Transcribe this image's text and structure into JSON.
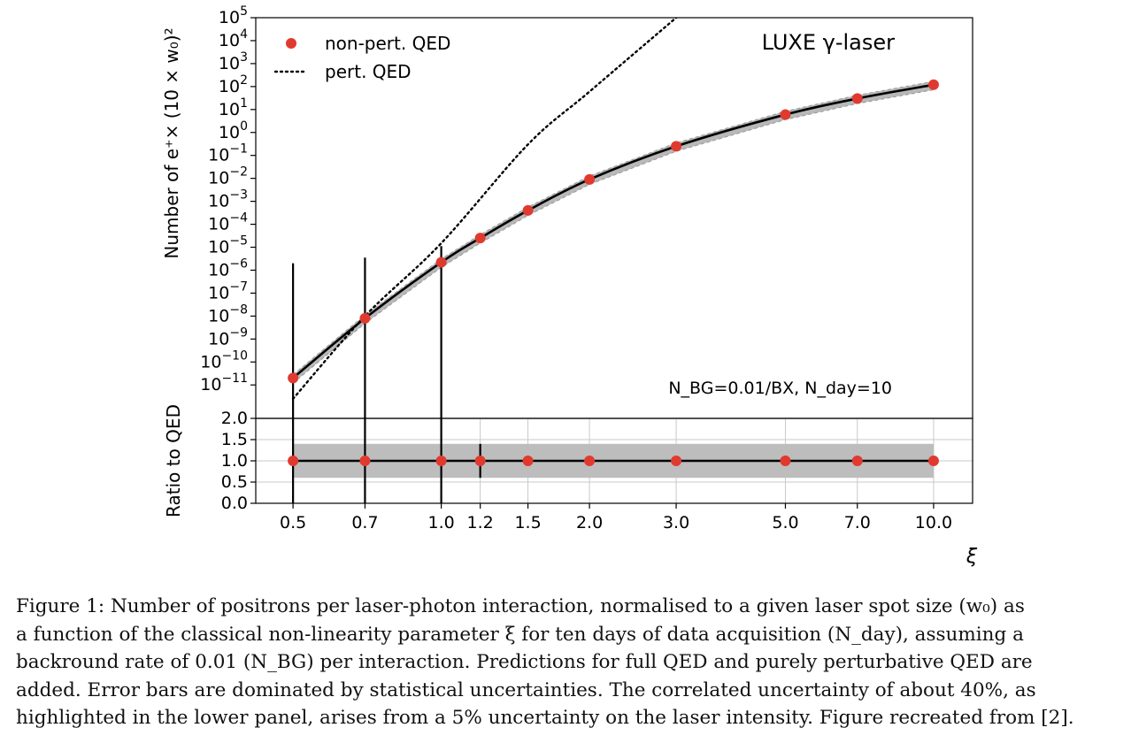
{
  "chart_data": {
    "type": "scatter",
    "xlabel": "ξ",
    "x_scale": "log",
    "x_ticks": [
      0.5,
      0.7,
      1.0,
      1.2,
      1.5,
      2.0,
      3.0,
      5.0,
      7.0,
      10.0
    ],
    "x_tick_labels": [
      "0.5",
      "0.7",
      "1.0",
      "1.2",
      "1.5",
      "2.0",
      "3.0",
      "5.0",
      "7.0",
      "10.0"
    ],
    "xlim": [
      0.42,
      12.0
    ],
    "upper_panel": {
      "ylabel": "Number of e⁺× (10 × w₀)²",
      "y_scale": "log",
      "ylim": [
        1e-12,
        100000.0
      ],
      "y_tick_exponents": [
        5,
        4,
        3,
        2,
        1,
        0,
        -1,
        -2,
        -3,
        -4,
        -5,
        -6,
        -7,
        -8,
        -9,
        -10,
        -11
      ],
      "annotation_title": "LUXE γ-laser",
      "annotation_bg": "N_BG=0.01/BX, N_day=10",
      "legend_position": "upper-left",
      "series": [
        {
          "name": "non-pert. QED",
          "style": "markers",
          "color": "#e03a2f",
          "x": [
            0.5,
            0.7,
            1.0,
            1.2,
            1.5,
            2.0,
            3.0,
            5.0,
            7.0,
            10.0
          ],
          "y": [
            2e-11,
            8e-09,
            2.2e-06,
            2.5e-05,
            0.0004,
            0.009,
            0.25,
            6,
            30,
            120
          ],
          "y_err": [
            [
              2e-11,
              2e-06
            ],
            [
              8e-09,
              3.5e-06
            ],
            [
              2.2e-06,
              9e-06
            ],
            [
              0,
              0
            ],
            [
              0,
              0
            ],
            [
              0,
              0
            ],
            [
              0,
              0
            ],
            [
              0,
              0
            ],
            [
              0,
              0
            ],
            [
              0,
              0
            ]
          ]
        },
        {
          "name": "non-pert. QED (curve)",
          "style": "solid-line-with-band",
          "color": "#000000",
          "band_color": "#b8b8b8",
          "x": [
            0.5,
            0.7,
            1.0,
            1.2,
            1.5,
            2.0,
            3.0,
            5.0,
            7.0,
            10.0
          ],
          "y": [
            2e-11,
            8e-09,
            2.2e-06,
            2.5e-05,
            0.0004,
            0.009,
            0.25,
            6,
            30,
            120
          ]
        },
        {
          "name": "pert. QED",
          "style": "dotted-line",
          "color": "#000000",
          "x": [
            0.5,
            0.7,
            1.0,
            1.5,
            2.0,
            3.0
          ],
          "y": [
            2.5e-12,
            1e-08,
            1.5e-05,
            0.3,
            60,
            100000.0
          ]
        }
      ]
    },
    "lower_panel": {
      "ylabel": "Ratio to QED",
      "ylim": [
        0.0,
        2.0
      ],
      "y_ticks": [
        "2.0",
        "1.5",
        "1.0",
        "0.5",
        "0.0"
      ],
      "grid": true,
      "band": [
        0.6,
        1.4
      ],
      "band_color": "#bdbdbd",
      "x": [
        0.5,
        0.7,
        1.0,
        1.2,
        1.5,
        2.0,
        3.0,
        5.0,
        7.0,
        10.0
      ],
      "y": [
        1.0,
        1.0,
        1.0,
        1.0,
        1.0,
        1.0,
        1.0,
        1.0,
        1.0,
        1.0
      ],
      "y_err": [
        [
          1.0,
          1.0
        ],
        [
          1.0,
          1.0
        ],
        [
          1.0,
          1.0
        ],
        [
          0.4,
          0.4
        ],
        [
          0,
          0
        ],
        [
          0,
          0
        ],
        [
          0,
          0
        ],
        [
          0,
          0
        ],
        [
          0,
          0
        ],
        [
          0,
          0
        ]
      ]
    }
  },
  "caption": {
    "lines": [
      "Figure 1: Number of positrons per laser-photon interaction, normalised to a given laser spot size (w₀) as",
      "a function of the classical non-linearity parameter ξ for ten days of data acquisition (N_day), assuming a",
      "backround rate of 0.01 (N_BG) per interaction. Predictions for full QED and purely perturbative QED are",
      "added. Error bars are dominated by statistical uncertainties. The correlated uncertainty of about 40%, as",
      "highlighted in the lower panel, arises from a 5% uncertainty on the laser intensity. Figure recreated from [2]."
    ]
  }
}
